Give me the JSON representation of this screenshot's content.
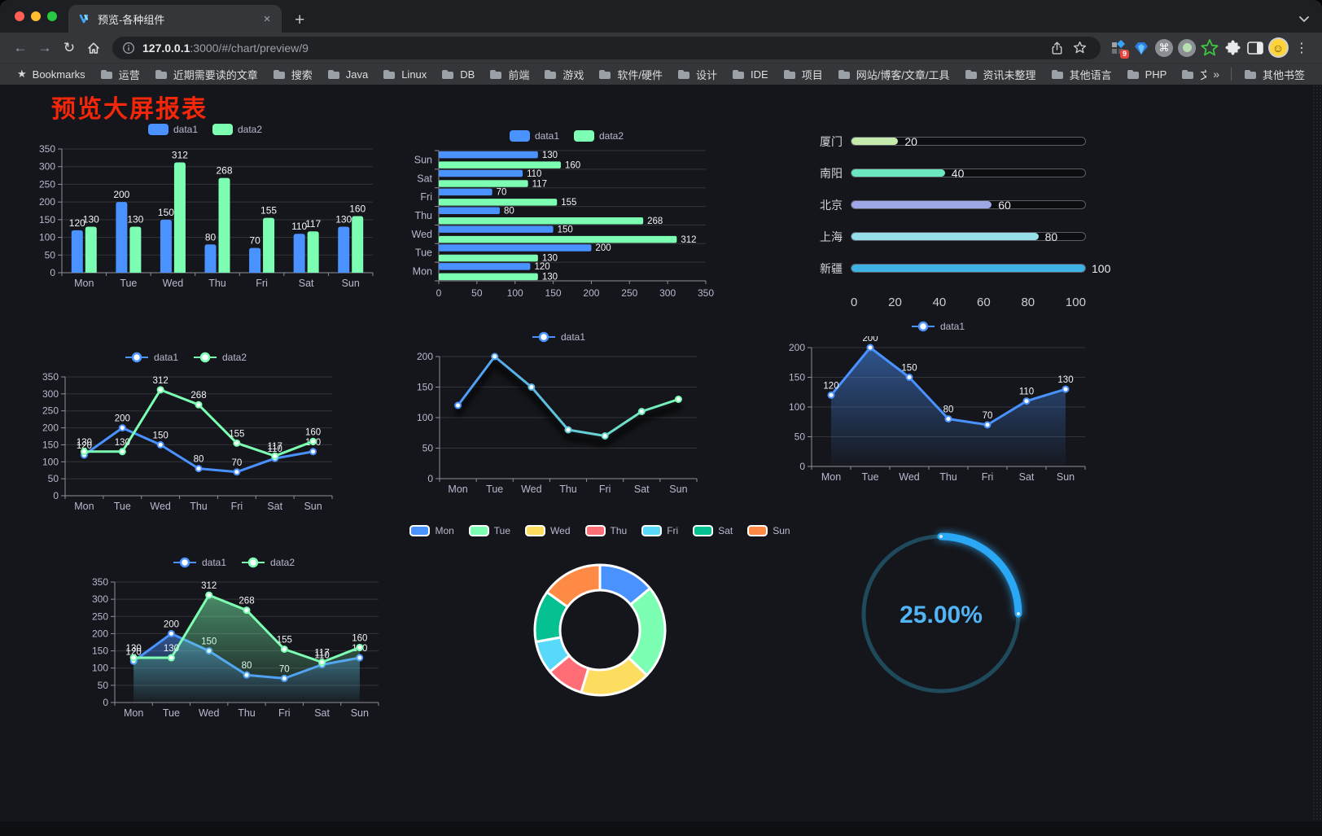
{
  "browser": {
    "tab_title": "预览-各种组件",
    "url": {
      "host": "127.0.0.1",
      "rest": ":3000/#/chart/preview/9"
    },
    "icons": {
      "back": "←",
      "forward": "→",
      "reload": "↻",
      "new_tab": "+",
      "close_tab": "×",
      "menu": "⋮",
      "overflow": "»",
      "bookmarks_star": "★",
      "cmd": "⌘",
      "avatar": "☺",
      "extension_badge": "9"
    },
    "bookmarks_bar": {
      "first_item": "Bookmarks",
      "folders": [
        "运营",
        "近期需要读的文章",
        "搜索",
        "Java",
        "Linux",
        "DB",
        "前端",
        "游戏",
        "软件/硬件",
        "设计",
        "IDE",
        "项目",
        "网站/博客/文章/工具",
        "资讯未整理",
        "其他语言",
        "PHP",
        "文件服务器"
      ],
      "other_bookmarks": "其他书签"
    }
  },
  "page": {
    "title": "预览大屏报表",
    "title_color": "#f5270b",
    "background": "#15161b"
  },
  "chart_data": [
    {
      "id": "bar-grouped",
      "type": "bar",
      "orientation": "vertical",
      "categories": [
        "Mon",
        "Tue",
        "Wed",
        "Thu",
        "Fri",
        "Sat",
        "Sun"
      ],
      "series": [
        {
          "name": "data1",
          "color": "#4992ff",
          "values": [
            120,
            200,
            150,
            80,
            70,
            110,
            130
          ]
        },
        {
          "name": "data2",
          "color": "#7cffb2",
          "values": [
            130,
            130,
            312,
            268,
            155,
            117,
            160
          ]
        }
      ],
      "ylim": [
        0,
        350
      ],
      "yticks": [
        0,
        50,
        100,
        150,
        200,
        250,
        300,
        350
      ],
      "legend_position": "top",
      "value_labels": true,
      "grid": true
    },
    {
      "id": "bar-horizontal",
      "type": "bar",
      "orientation": "horizontal",
      "categories_bottom_to_top": [
        "Mon",
        "Tue",
        "Wed",
        "Thu",
        "Fri",
        "Sat",
        "Sun"
      ],
      "series": [
        {
          "name": "data1",
          "color": "#4992ff",
          "values": [
            120,
            200,
            150,
            80,
            70,
            110,
            130
          ]
        },
        {
          "name": "data2",
          "color": "#7cffb2",
          "values": [
            130,
            130,
            312,
            268,
            155,
            117,
            160
          ]
        }
      ],
      "xlim": [
        0,
        350
      ],
      "xticks": [
        0,
        50,
        100,
        150,
        200,
        250,
        300,
        350
      ],
      "legend_position": "top",
      "value_labels": true,
      "grid": true
    },
    {
      "id": "progress",
      "type": "bar",
      "subtype": "capsule-progress",
      "items": [
        {
          "label": "厦门",
          "value": 20,
          "color": "#c4ebad"
        },
        {
          "label": "南阳",
          "value": 40,
          "color": "#6be6c1"
        },
        {
          "label": "北京",
          "value": 60,
          "color": "#a0a7e6"
        },
        {
          "label": "上海",
          "value": 80,
          "color": "#96dee8"
        },
        {
          "label": "新疆",
          "value": 100,
          "color": "#3fb1e3"
        }
      ],
      "xlim": [
        0,
        100
      ],
      "xticks": [
        0,
        20,
        40,
        60,
        80,
        100
      ]
    },
    {
      "id": "line-dual",
      "type": "line",
      "categories": [
        "Mon",
        "Tue",
        "Wed",
        "Thu",
        "Fri",
        "Sat",
        "Sun"
      ],
      "series": [
        {
          "name": "data1",
          "color": "#4992ff",
          "values": [
            120,
            200,
            150,
            80,
            70,
            110,
            130
          ]
        },
        {
          "name": "data2",
          "color": "#7cffb2",
          "values": [
            130,
            130,
            312,
            268,
            155,
            117,
            160
          ]
        }
      ],
      "ylim": [
        0,
        350
      ],
      "yticks": [
        0,
        50,
        100,
        150,
        200,
        250,
        300,
        350
      ],
      "legend_position": "top",
      "value_labels": true,
      "grid": true
    },
    {
      "id": "line-gradient",
      "type": "line",
      "categories": [
        "Mon",
        "Tue",
        "Wed",
        "Thu",
        "Fri",
        "Sat",
        "Sun"
      ],
      "series": [
        {
          "name": "data1",
          "color_start": "#4992ff",
          "color_end": "#7cffb2",
          "values": [
            120,
            200,
            150,
            80,
            70,
            110,
            130
          ]
        }
      ],
      "ylim": [
        0,
        200
      ],
      "yticks": [
        0,
        50,
        100,
        150,
        200
      ],
      "legend_position": "top",
      "value_labels": false,
      "shadow": true,
      "grid": true
    },
    {
      "id": "area-single",
      "type": "area",
      "categories": [
        "Mon",
        "Tue",
        "Wed",
        "Thu",
        "Fri",
        "Sat",
        "Sun"
      ],
      "series": [
        {
          "name": "data1",
          "color": "#4992ff",
          "values": [
            120,
            200,
            150,
            80,
            70,
            110,
            130
          ]
        }
      ],
      "ylim": [
        0,
        200
      ],
      "yticks": [
        0,
        50,
        100,
        150,
        200
      ],
      "legend_position": "top",
      "value_labels": true,
      "grid": true
    },
    {
      "id": "area-dual",
      "type": "area",
      "categories": [
        "Mon",
        "Tue",
        "Wed",
        "Thu",
        "Fri",
        "Sat",
        "Sun"
      ],
      "series": [
        {
          "name": "data1",
          "color": "#4992ff",
          "values": [
            120,
            200,
            150,
            80,
            70,
            110,
            130
          ]
        },
        {
          "name": "data2",
          "color": "#7cffb2",
          "values": [
            130,
            130,
            312,
            268,
            155,
            117,
            160
          ]
        }
      ],
      "ylim": [
        0,
        350
      ],
      "yticks": [
        0,
        50,
        100,
        150,
        200,
        250,
        300,
        350
      ],
      "legend_position": "top",
      "value_labels": true,
      "grid": true
    },
    {
      "id": "donut",
      "type": "pie",
      "inner_radius_ratio": 0.61,
      "legend_position": "top",
      "slices": [
        {
          "label": "Mon",
          "value": 120,
          "color": "#4992ff"
        },
        {
          "label": "Tue",
          "value": 200,
          "color": "#7cffb2"
        },
        {
          "label": "Wed",
          "value": 150,
          "color": "#fddd60"
        },
        {
          "label": "Thu",
          "value": 80,
          "color": "#ff6e76"
        },
        {
          "label": "Fri",
          "value": 70,
          "color": "#58d9f9"
        },
        {
          "label": "Sat",
          "value": 110,
          "color": "#05c091"
        },
        {
          "label": "Sun",
          "value": 130,
          "color": "#ff8a45"
        }
      ]
    },
    {
      "id": "gauge",
      "type": "gauge",
      "value": 25,
      "max": 100,
      "label": "25.00%",
      "progress_color": "#2aa7f5",
      "track_color": "#1f4a5c",
      "text_color": "#50b4f5"
    }
  ]
}
